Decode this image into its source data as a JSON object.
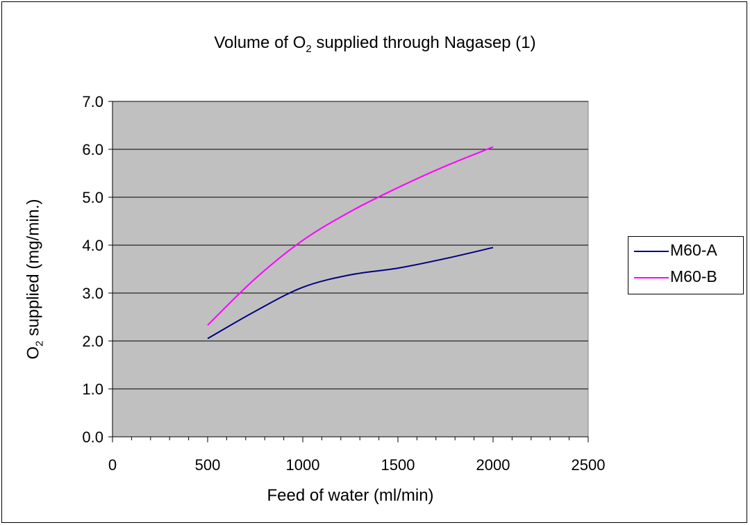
{
  "chart_data": {
    "type": "line",
    "title_main": "Volume of O",
    "title_sub": "2",
    "title_rest": " supplied through Nagasep (1)",
    "ylabel_main": "O",
    "ylabel_sub": "2",
    "ylabel_rest": " supplied (mg/min.)",
    "xlabel": "Feed of water (ml/min)",
    "xlim": [
      0,
      2500
    ],
    "ylim": [
      0.0,
      7.0
    ],
    "x_ticks": [
      "0",
      "500",
      "1000",
      "1500",
      "2000",
      "2500"
    ],
    "y_ticks": [
      "0.0",
      "1.0",
      "2.0",
      "3.0",
      "4.0",
      "5.0",
      "6.0",
      "7.0"
    ],
    "grid": true,
    "legend_position": "right",
    "plot_background": "#c0c0c0",
    "series": [
      {
        "name": "M60-A",
        "color": "#000080",
        "points": [
          [
            500,
            2.05
          ],
          [
            750,
            2.62
          ],
          [
            1000,
            3.12
          ],
          [
            1250,
            3.38
          ],
          [
            1500,
            3.52
          ],
          [
            1750,
            3.72
          ],
          [
            2000,
            3.95
          ]
        ]
      },
      {
        "name": "M60-B",
        "color": "#ff00ff",
        "points": [
          [
            500,
            2.33
          ],
          [
            750,
            3.3
          ],
          [
            1000,
            4.1
          ],
          [
            1250,
            4.7
          ],
          [
            1500,
            5.2
          ],
          [
            1750,
            5.65
          ],
          [
            2000,
            6.05
          ]
        ]
      }
    ]
  }
}
